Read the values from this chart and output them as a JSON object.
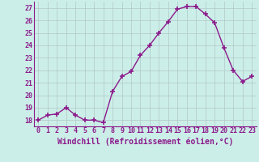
{
  "x": [
    0,
    1,
    2,
    3,
    4,
    5,
    6,
    7,
    8,
    9,
    10,
    11,
    12,
    13,
    14,
    15,
    16,
    17,
    18,
    19,
    20,
    21,
    22,
    23
  ],
  "y": [
    18.0,
    18.4,
    18.5,
    19.0,
    18.4,
    18.0,
    18.0,
    17.8,
    20.3,
    21.5,
    21.9,
    23.2,
    24.0,
    25.0,
    25.9,
    26.9,
    27.1,
    27.1,
    26.5,
    25.8,
    23.8,
    22.0,
    21.1,
    21.5
  ],
  "line_color": "#8b1a8b",
  "marker": "+",
  "marker_size": 4,
  "marker_lw": 1.2,
  "line_width": 1.0,
  "bg_color": "#cceee8",
  "grid_color": "#b0c8c8",
  "xlabel": "Windchill (Refroidissement éolien,°C)",
  "xlabel_color": "#8b1a8b",
  "tick_color": "#8b1a8b",
  "axis_color": "#8b1a8b",
  "ylim": [
    17.5,
    27.5
  ],
  "xlim": [
    -0.5,
    23.5
  ],
  "yticks": [
    18,
    19,
    20,
    21,
    22,
    23,
    24,
    25,
    26,
    27
  ],
  "xticks": [
    0,
    1,
    2,
    3,
    4,
    5,
    6,
    7,
    8,
    9,
    10,
    11,
    12,
    13,
    14,
    15,
    16,
    17,
    18,
    19,
    20,
    21,
    22,
    23
  ],
  "tick_fontsize": 6.0,
  "xlabel_fontsize": 7.0,
  "grid_lw": 0.5
}
